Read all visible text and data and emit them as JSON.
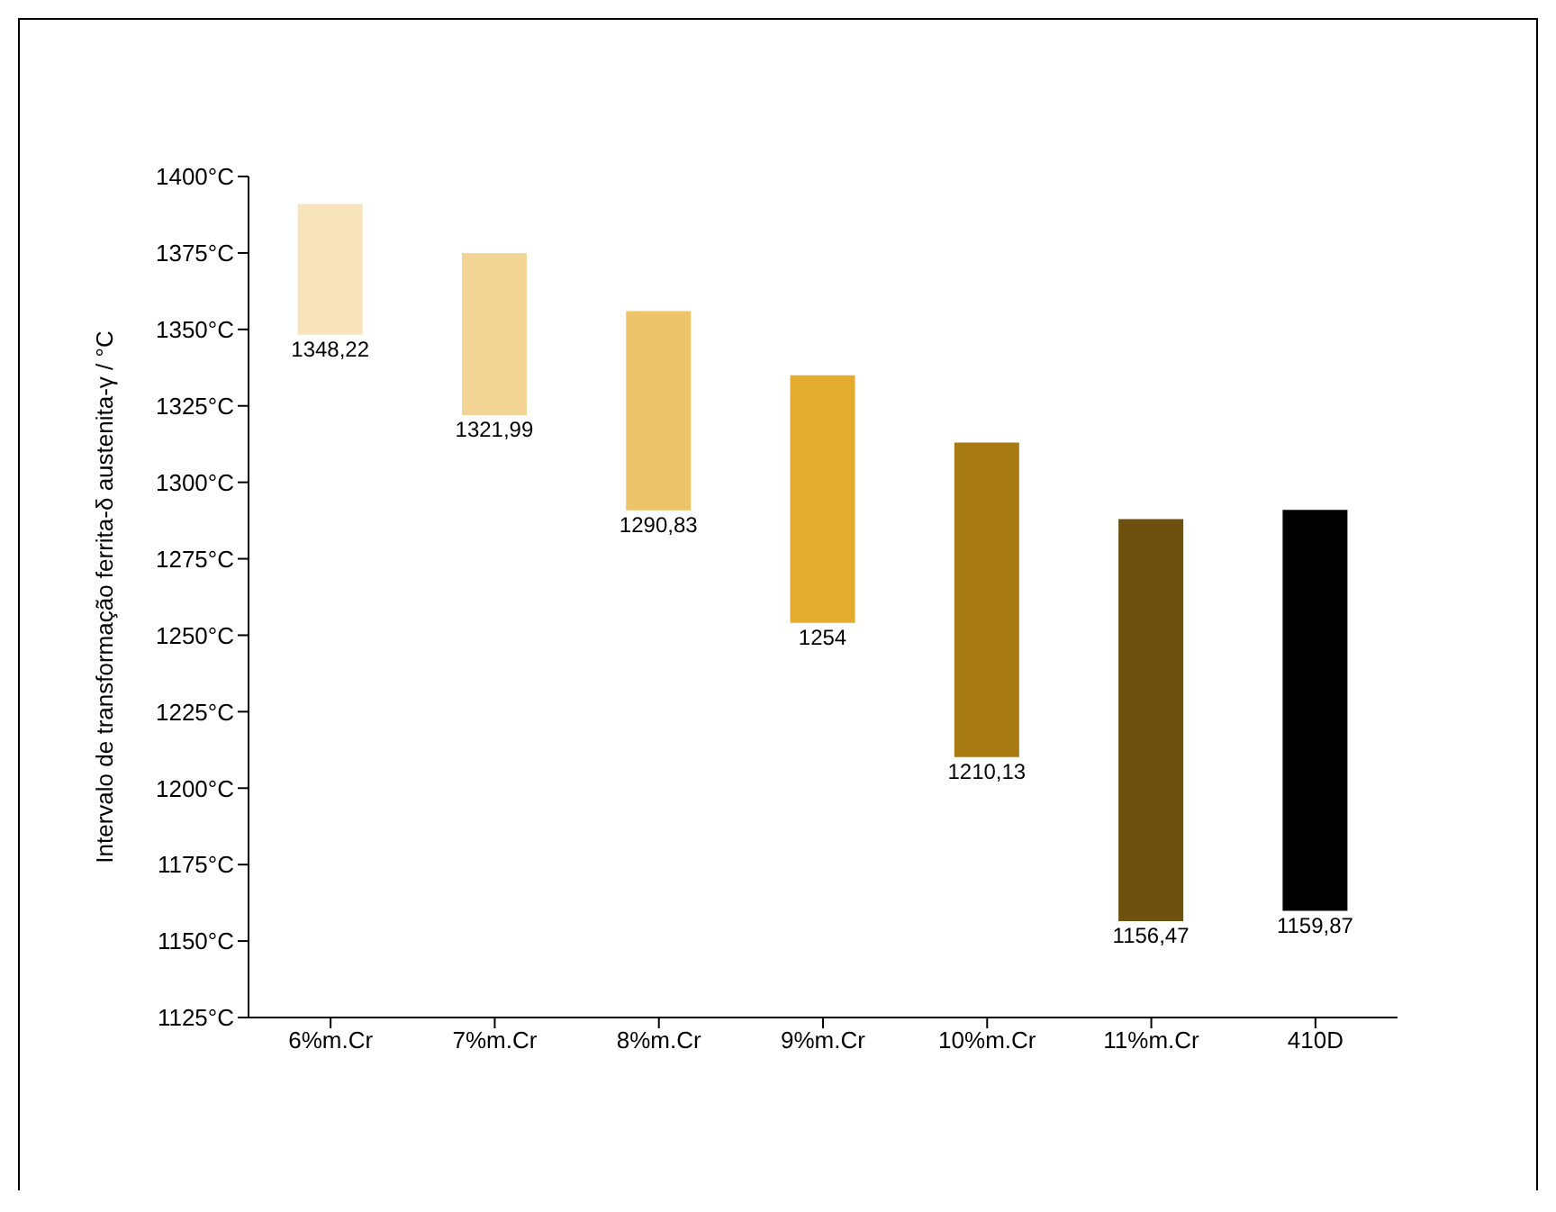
{
  "chart_data": {
    "type": "bar",
    "ylabel": "Intervalo de transformação ferrita-δ austenita-γ / °C",
    "categories": [
      "6%m.Cr",
      "7%m.Cr",
      "8%m.Cr",
      "9%m.Cr",
      "10%m.Cr",
      "11%m.Cr",
      "410D"
    ],
    "base": [
      1348.22,
      1321.99,
      1290.83,
      1254,
      1210.13,
      1156.47,
      1159.87
    ],
    "values": [
      42.78,
      53.01,
      65.17,
      81,
      102.87,
      131.53,
      131.13
    ],
    "colors": [
      "#f7e4bd",
      "#f2d594",
      "#edc46a",
      "#e3ac2f",
      "#a87a14",
      "#6e500f",
      "#000000"
    ],
    "ylim": [
      1125,
      1400
    ],
    "yticks": [
      {
        "value": 1125,
        "label": "1125°C"
      },
      {
        "value": 1150,
        "label": "1150°C"
      },
      {
        "value": 1175,
        "label": "1175°C"
      },
      {
        "value": 1200,
        "label": "1200°C"
      },
      {
        "value": 1225,
        "label": "1225°C"
      },
      {
        "value": 1250,
        "label": "1250°C"
      },
      {
        "value": 1275,
        "label": "1275°C"
      },
      {
        "value": 1300,
        "label": "1300°C"
      },
      {
        "value": 1325,
        "label": "1325°C"
      },
      {
        "value": 1350,
        "label": "1350°C"
      },
      {
        "value": 1375,
        "label": "1375°C"
      },
      {
        "value": 1400,
        "label": "1400°C"
      }
    ],
    "annotations": [
      "1348,22",
      "1321,99",
      "1290,83",
      "1254",
      "1210,13",
      "1156,47",
      "1159,87"
    ],
    "grid": false,
    "legend": false
  }
}
